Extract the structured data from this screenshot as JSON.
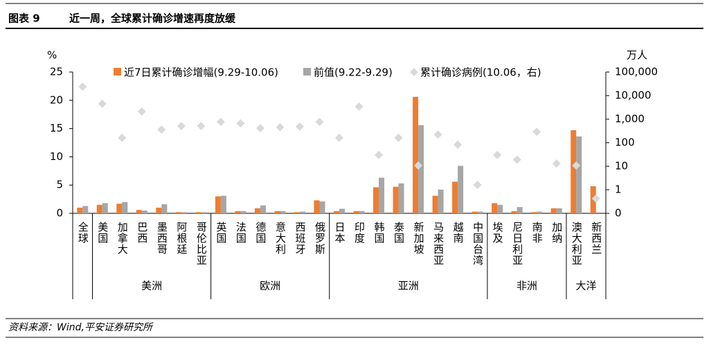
{
  "chart_data": {
    "type": "bar",
    "title_label": "图表 9",
    "title": "近一周，全球累计确诊增速再度放缓",
    "source": "资料来源：Wind,平安证券研究所",
    "ylabel": "%",
    "y2label": "万人",
    "categories": [
      "全球",
      "美国",
      "加拿大",
      "巴西",
      "墨西哥",
      "阿根廷",
      "哥伦比亚",
      "英国",
      "法国",
      "德国",
      "意大利",
      "西班牙",
      "俄罗斯",
      "日本",
      "印度",
      "韩国",
      "泰国",
      "新加坡",
      "马来西亚",
      "越南",
      "中国台湾",
      "埃及",
      "尼日利亚",
      "南非",
      "加纳",
      "澳大利亚",
      "新西兰"
    ],
    "category_groups": [
      null,
      "美洲",
      "美洲",
      "美洲",
      "美洲",
      "美洲",
      "美洲",
      "欧洲",
      "欧洲",
      "欧洲",
      "欧洲",
      "欧洲",
      "欧洲",
      "亚洲",
      "亚洲",
      "亚洲",
      "亚洲",
      "亚洲",
      "亚洲",
      "亚洲",
      "亚洲",
      "非洲",
      "非洲",
      "非洲",
      "非洲",
      "大洋",
      "大洋"
    ],
    "series": [
      {
        "name": "近7日累计确诊增幅(9.29-10.06)",
        "color": "#ED7D31",
        "type": "bar",
        "values": [
          1.0,
          1.5,
          1.7,
          0.6,
          1.0,
          0.2,
          0.2,
          3.0,
          0.4,
          0.9,
          0.4,
          0.2,
          2.3,
          0.4,
          0.4,
          4.6,
          4.7,
          20.6,
          3.1,
          5.6,
          0.3,
          1.8,
          0.4,
          0.2,
          0.9,
          14.7,
          4.8
        ]
      },
      {
        "name": "前值(9.22-9.29)",
        "color": "#A6A6A6",
        "type": "bar",
        "values": [
          1.3,
          1.8,
          2.0,
          0.5,
          1.6,
          0.2,
          0.2,
          3.1,
          0.4,
          1.4,
          0.4,
          0.3,
          2.1,
          0.8,
          0.4,
          6.3,
          5.3,
          15.6,
          4.2,
          8.4,
          0.3,
          1.5,
          1.1,
          0.3,
          0.9,
          13.6,
          null
        ]
      },
      {
        "name": "累计确诊病例(10.06，右)",
        "color": "#D9D9D9",
        "type": "scatter",
        "axis": "y2",
        "values": [
          24000,
          4500,
          160,
          2100,
          360,
          510,
          510,
          760,
          660,
          410,
          450,
          480,
          760,
          160,
          3400,
          30,
          160,
          10.7,
          220,
          82,
          1.6,
          30,
          19,
          290,
          13,
          10.7,
          0.42
        ]
      }
    ],
    "ylim": [
      0,
      25
    ],
    "yticks": [
      0,
      5,
      10,
      15,
      20,
      25
    ],
    "y2lim": [
      0.1,
      100000
    ],
    "y2log": true,
    "y2ticks": [
      {
        "value": 0.1,
        "label": "0"
      },
      1,
      10,
      100,
      {
        "value": 1000,
        "label": "1,000"
      },
      {
        "value": 10000,
        "label": "10,000"
      },
      {
        "value": 100000,
        "label": "100,000"
      }
    ]
  }
}
